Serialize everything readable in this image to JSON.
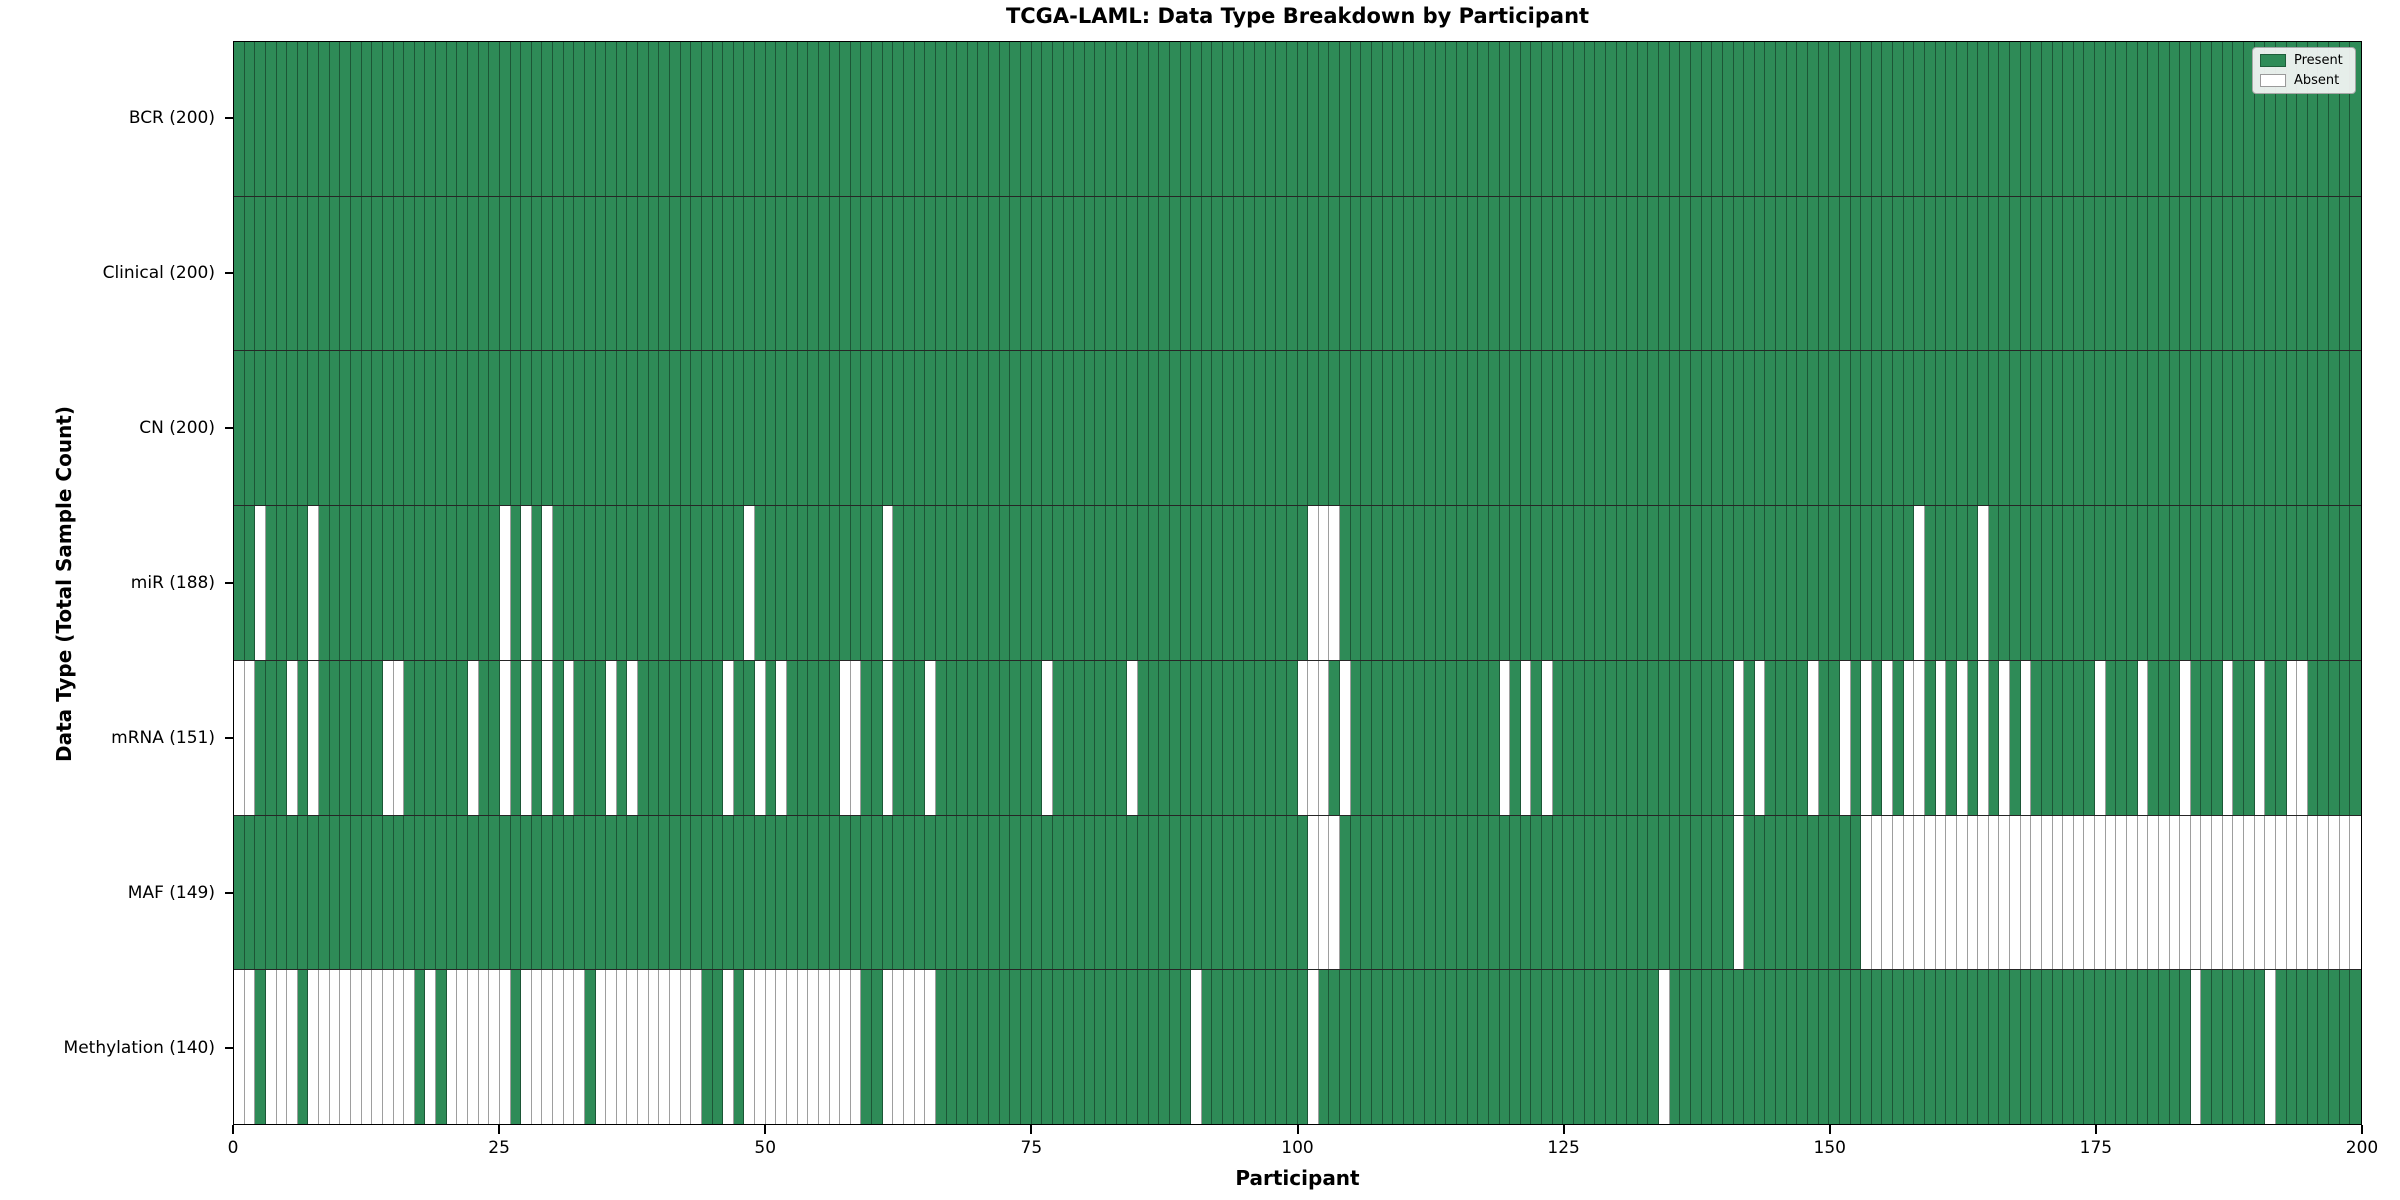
{
  "title": "TCGA-LAML: Data Type Breakdown by Participant",
  "x_axis": {
    "label": "Participant",
    "ticks": [
      0,
      25,
      50,
      75,
      100,
      125,
      150,
      175,
      200
    ]
  },
  "y_axis": {
    "label": "Data Type (Total Sample Count)"
  },
  "legend": {
    "present_label": "Present",
    "absent_label": "Absent"
  },
  "colors": {
    "present": "#2e8b57",
    "absent": "#ffffff",
    "cell_border": "rgba(0,0,0,0.38)",
    "row_border": "#262626",
    "legend_present_edge": "#1e5e3a",
    "legend_absent_edge": "#9a9a9a"
  },
  "chart_data": {
    "type": "heatmap",
    "title": "TCGA-LAML: Data Type Breakdown by Participant",
    "xlabel": "Participant",
    "ylabel": "Data Type (Total Sample Count)",
    "x_range": [
      0,
      200
    ],
    "participants": 200,
    "legend_position": "upper right",
    "rows": [
      {
        "data_type": "BCR",
        "label": "BCR (200)",
        "present_count": 200,
        "absent_participants": []
      },
      {
        "data_type": "Clinical",
        "label": "Clinical (200)",
        "present_count": 200,
        "absent_participants": []
      },
      {
        "data_type": "CN",
        "label": "CN (200)",
        "present_count": 200,
        "absent_participants": []
      },
      {
        "data_type": "miR",
        "label": "miR (188)",
        "present_count": 188,
        "absent_participants": [
          2,
          7,
          25,
          27,
          29,
          48,
          61,
          101,
          102,
          103,
          158,
          164
        ]
      },
      {
        "data_type": "mRNA",
        "label": "mRNA (151)",
        "present_count": 151,
        "absent_participants": [
          0,
          1,
          5,
          7,
          14,
          15,
          22,
          25,
          27,
          29,
          31,
          35,
          37,
          46,
          49,
          51,
          57,
          58,
          61,
          65,
          76,
          84,
          100,
          101,
          102,
          104,
          119,
          121,
          123,
          141,
          143,
          148,
          151,
          153,
          155,
          157,
          158,
          160,
          162,
          164,
          166,
          168,
          175,
          179,
          183,
          187,
          190,
          193,
          194
        ]
      },
      {
        "data_type": "MAF",
        "label": "MAF (149)",
        "present_count": 149,
        "absent_participants": [
          101,
          102,
          103,
          141,
          153,
          154,
          155,
          156,
          157,
          158,
          159,
          160,
          161,
          162,
          163,
          164,
          165,
          166,
          167,
          168,
          169,
          170,
          171,
          172,
          173,
          174,
          175,
          176,
          177,
          178,
          179,
          180,
          181,
          182,
          183,
          184,
          185,
          186,
          187,
          188,
          189,
          190,
          191,
          192,
          193,
          194,
          195,
          196,
          197,
          198,
          199
        ]
      },
      {
        "data_type": "Methylation",
        "label": "Methylation (140)",
        "present_count": 140,
        "absent_participants": [
          0,
          1,
          3,
          4,
          5,
          7,
          8,
          9,
          10,
          11,
          12,
          13,
          14,
          15,
          16,
          18,
          20,
          21,
          22,
          23,
          24,
          25,
          27,
          28,
          29,
          30,
          31,
          32,
          34,
          35,
          36,
          37,
          38,
          39,
          40,
          41,
          42,
          43,
          46,
          48,
          49,
          50,
          51,
          52,
          53,
          54,
          55,
          56,
          57,
          58,
          61,
          62,
          63,
          64,
          65,
          90,
          101,
          134,
          184,
          191
        ]
      }
    ]
  }
}
